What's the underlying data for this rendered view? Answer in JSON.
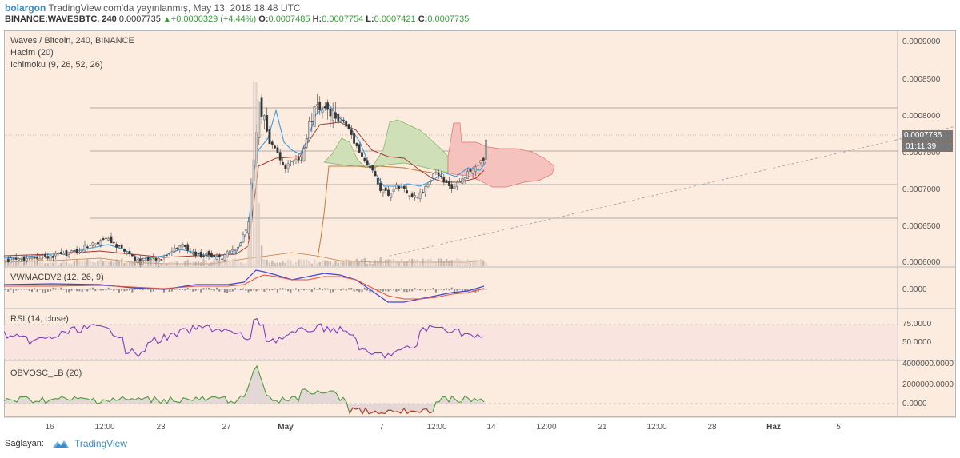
{
  "header": {
    "author": "bolargon",
    "published": "TradingView.com'da yayınlanmış, May 13, 2018 18:48 UTC",
    "symbol": "BINANCE:WAVESBTC, 240",
    "last": "0.0007735",
    "change": "+0.0000329 (+4.44%)",
    "o_label": "O:",
    "o_value": "0.0007485",
    "h_label": "H:",
    "h_value": "0.0007754",
    "l_label": "L:",
    "l_value": "0.0007421",
    "c_label": "C:",
    "c_value": "0.0007735"
  },
  "main_pane": {
    "title": "Waves / Bitcoin, 240, BINANCE",
    "volume_label": "Hacim (20)",
    "ichimoku_label": "Ichimoku (9, 26, 52, 26)",
    "price_ticks": [
      "0.0009000",
      "0.0008500",
      "0.0008000",
      "0.0007500",
      "0.0007000",
      "0.0006500",
      "0.0006000"
    ],
    "last_price": "0.0007735",
    "countdown": "01:11:39"
  },
  "macd_pane": {
    "label": "VWMACDV2 (12, 26, 9)",
    "ticks": [
      "0.0000"
    ]
  },
  "rsi_pane": {
    "label": "RSI (14, close)",
    "ticks": [
      "75.0000",
      "50.0000"
    ]
  },
  "obv_pane": {
    "label": "OBVOSC_LB (20)",
    "ticks": [
      "4000000.0000",
      "2000000.0000",
      "0.0000"
    ]
  },
  "time_axis": [
    "16",
    "12:00",
    "23",
    "27",
    "May",
    "7",
    "12:00",
    "14",
    "12:00",
    "21",
    "12:00",
    "28",
    "Haz",
    "5"
  ],
  "footer": {
    "provider_label": "Sağlayan:",
    "brand": "TradingView"
  },
  "colors": {
    "background": "#fcecdf",
    "up": "#3c9a3c",
    "tenkan": "#3b9be0",
    "kijun": "#a33a2f",
    "chikou": "#c47a3a",
    "kumo_bull": "#cfe0b8",
    "kumo_bear": "#f5c2bd",
    "macd_line": "#4343d6",
    "signal_line": "#e0503c",
    "rsi_line": "#7b3fbf",
    "obv_line": "#4c9a3c"
  }
}
